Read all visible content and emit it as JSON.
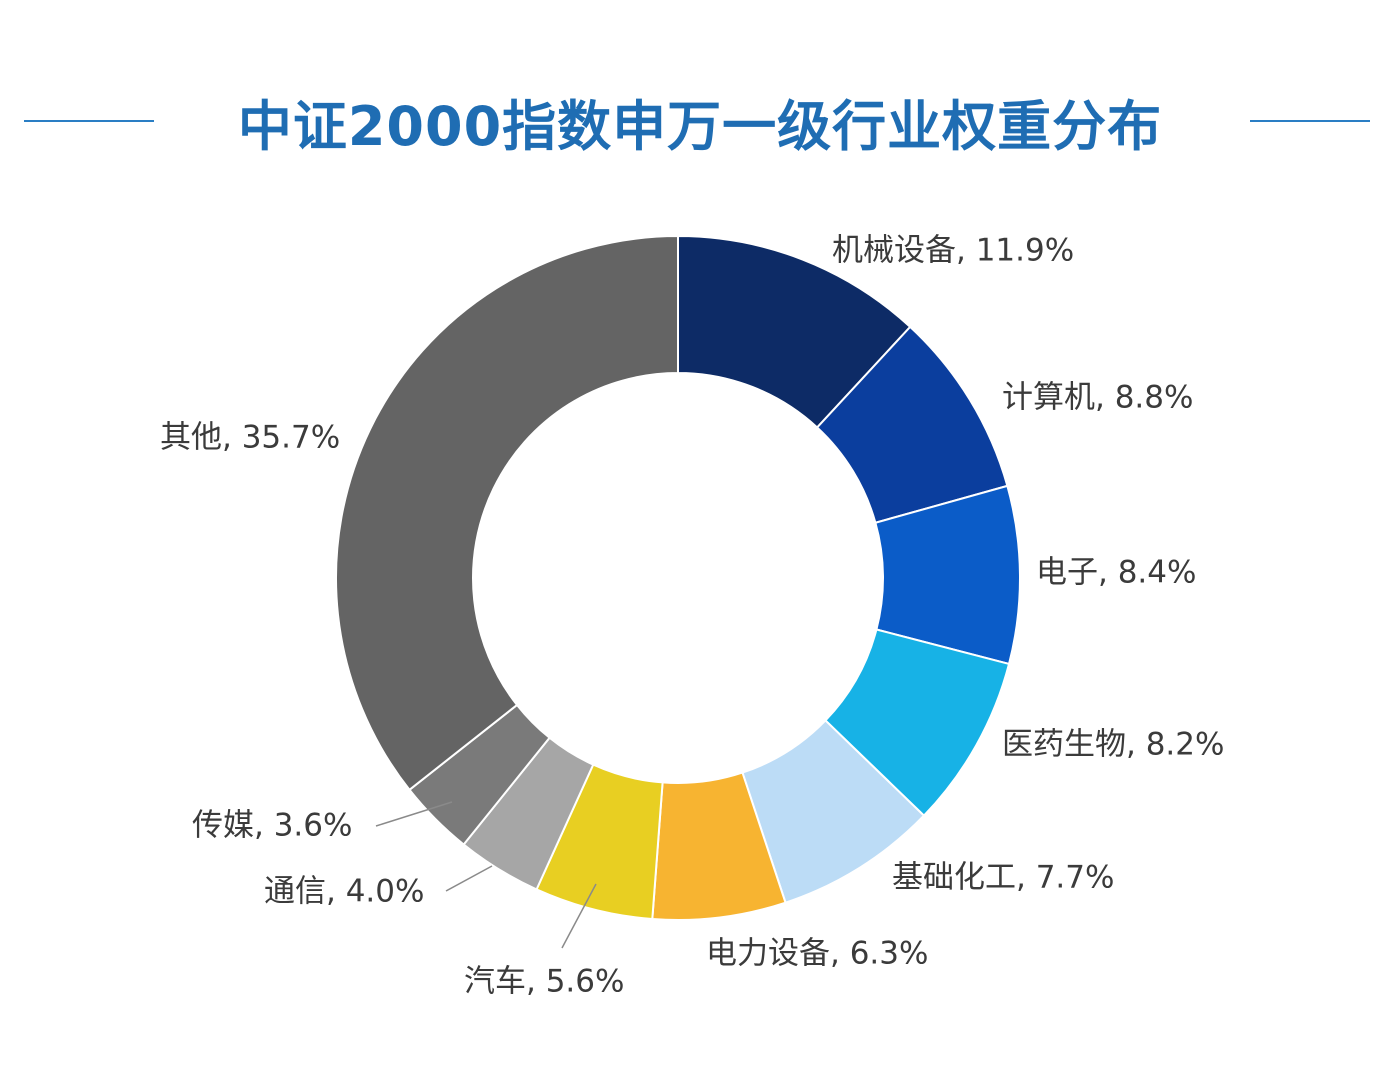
{
  "chart_data": {
    "type": "pie",
    "variant": "donut",
    "title": "中证2000指数申万一级行业权重分布",
    "slices": [
      {
        "label": "机械设备, 11.9%",
        "value": 11.9,
        "color": "#0d2b66"
      },
      {
        "label": "计算机, 8.8%",
        "value": 8.8,
        "color": "#0b3e9e"
      },
      {
        "label": "电子, 8.4%",
        "value": 8.4,
        "color": "#0b5cc8"
      },
      {
        "label": "医药生物, 8.2%",
        "value": 8.2,
        "color": "#17b2e6"
      },
      {
        "label": "基础化工, 7.7%",
        "value": 7.7,
        "color": "#bcdcf6"
      },
      {
        "label": "电力设备, 6.3%",
        "value": 6.3,
        "color": "#f7b431"
      },
      {
        "label": "汽车, 5.6%",
        "value": 5.6,
        "color": "#e8cf22"
      },
      {
        "label": "通信, 4.0%",
        "value": 4.0,
        "color": "#a6a6a6"
      },
      {
        "label": "传媒, 3.6%",
        "value": 3.6,
        "color": "#7a7a7a"
      },
      {
        "label": "其他, 35.7%",
        "value": 35.7,
        "color": "#646464"
      }
    ]
  }
}
